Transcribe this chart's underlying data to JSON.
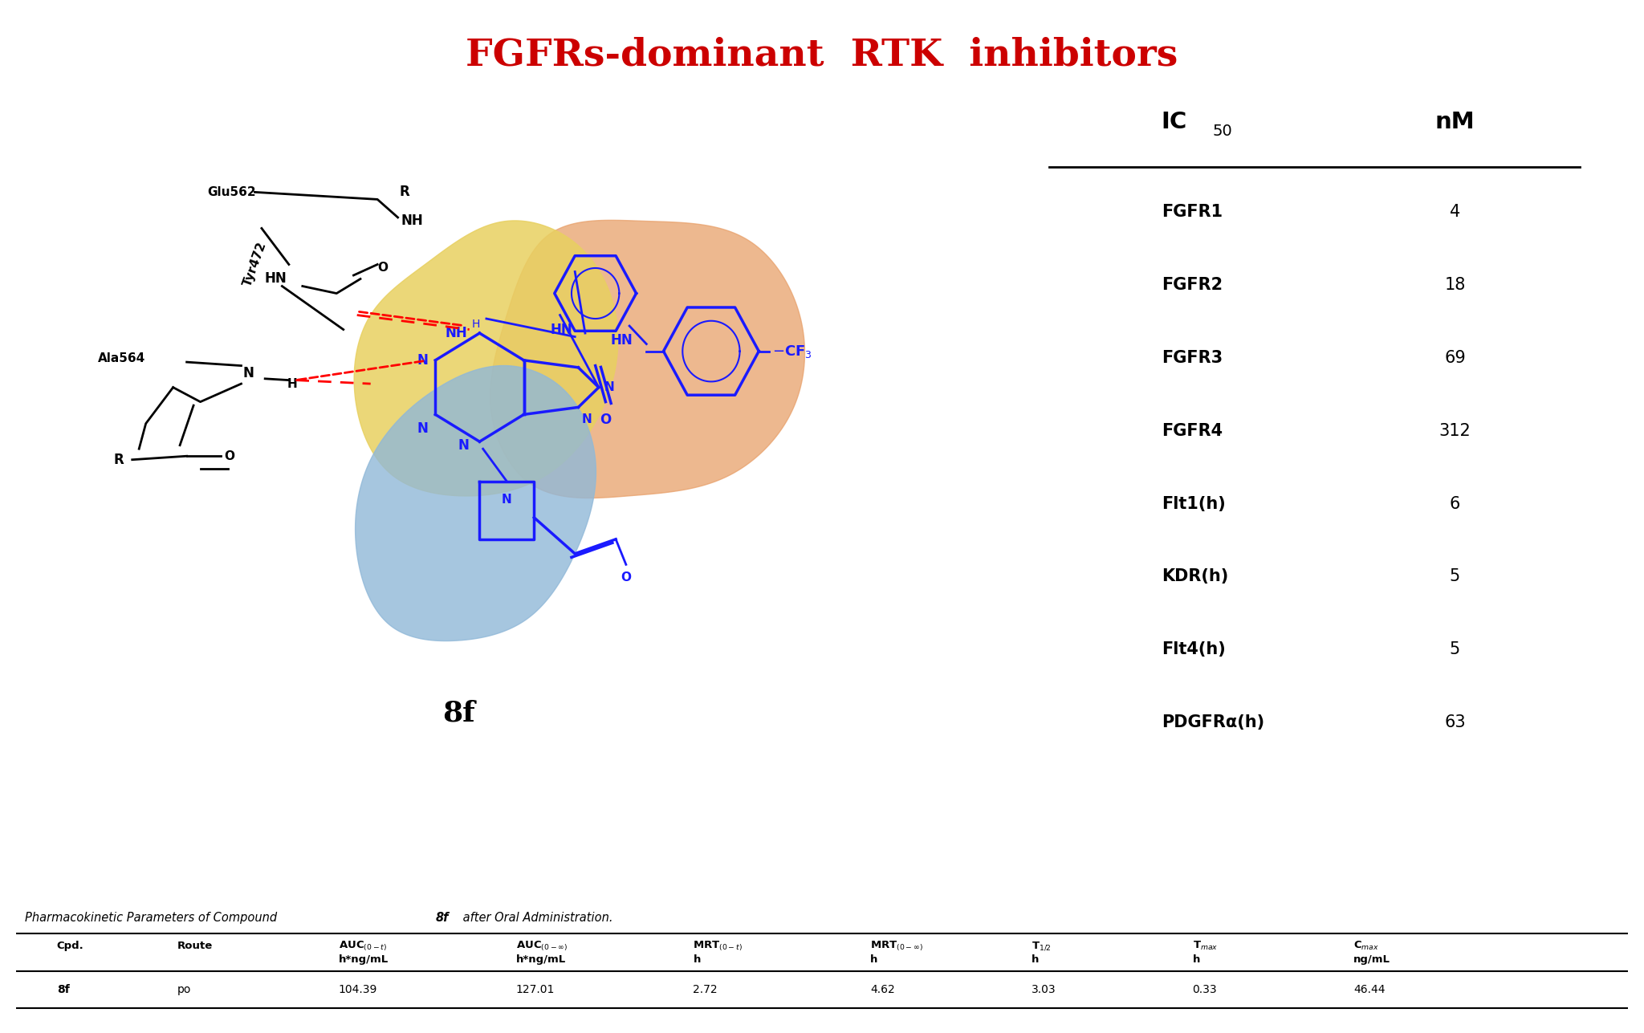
{
  "title": "FGFRs-dominant  RTK  inhibitors",
  "title_color": "#CC0000",
  "title_fontsize": 34,
  "ic50_rows": [
    [
      "FGFR1",
      "4"
    ],
    [
      "FGFR2",
      "18"
    ],
    [
      "FGFR3",
      "69"
    ],
    [
      "FGFR4",
      "312"
    ],
    [
      "Flt1(h)",
      "6"
    ],
    [
      "KDR(h)",
      "5"
    ],
    [
      "Flt4(h)",
      "5"
    ],
    [
      "PDGFRα(h)",
      "63"
    ]
  ],
  "pk_row": [
    "8f",
    "po",
    "104.39",
    "127.01",
    "2.72",
    "4.62",
    "3.03",
    "0.33",
    "46.44"
  ],
  "background_color": "#ffffff",
  "blob_orange_color": "#E8A06A",
  "blob_yellow_color": "#E8D060",
  "blob_blue_color": "#90B8D8",
  "mol_color": "#1a1aff"
}
